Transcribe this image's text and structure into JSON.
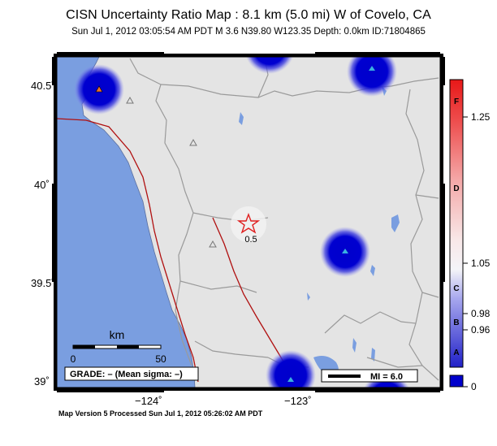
{
  "header": {
    "title": "CISN Uncertainty Ratio Map : 8.1 km (5.0 mi) W of Covelo, CA",
    "subtitle": "Sun Jul  1, 2012 03:05:54 AM PDT    M 3.6    N39.80 W123.35    Depth: 0.0km    ID:71804865"
  },
  "map": {
    "lat_ticks": [
      "40.5˚",
      "40˚",
      "39.5˚",
      "39˚"
    ],
    "lon_ticks": [
      "−124˚",
      "−123˚"
    ],
    "epicenter_label": "0.5",
    "scale_bar": {
      "unit_label": "km",
      "start_label": "0",
      "end_label": "50"
    },
    "grade_box": "GRADE: – (Mean sigma: –)",
    "mi_box": "MI = 6.0",
    "colors": {
      "ocean": "#7a9ee0",
      "land": "#e4e4e4",
      "county_lines": "#9a9a9a",
      "fault_lines": "#b01010",
      "station_blue": "#0000cc",
      "epicenter_star": "#e02020"
    }
  },
  "colorbar": {
    "letters": [
      "F",
      "D",
      "C",
      "B",
      "A"
    ],
    "values": [
      "1.25",
      "1.05",
      "0.98",
      "0.96",
      "0"
    ]
  },
  "footer": {
    "text": "Map Version 5 Processed Sun Jul  1, 2012 05:26:02 AM PDT"
  }
}
